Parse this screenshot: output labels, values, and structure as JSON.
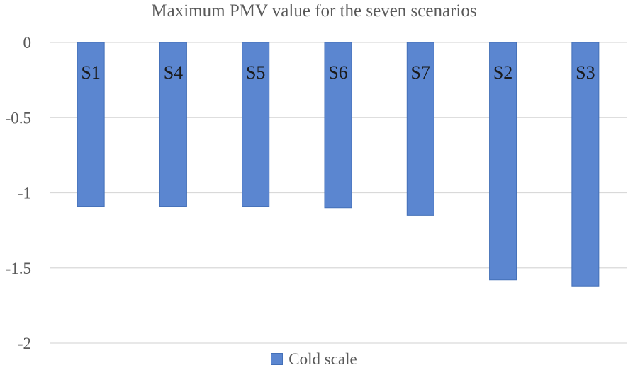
{
  "chart_data": {
    "type": "bar",
    "title": "Maximum PMV value for the seven scenarios",
    "categories": [
      "S1",
      "S4",
      "S5",
      "S6",
      "S7",
      "S2",
      "S3"
    ],
    "series": [
      {
        "name": "Cold scale",
        "values": [
          -1.09,
          -1.09,
          -1.09,
          -1.1,
          -1.15,
          -1.58,
          -1.62
        ]
      }
    ],
    "ylim": [
      -2,
      0
    ],
    "yticks": [
      0,
      -0.5,
      -1,
      -1.5,
      -2
    ],
    "ytick_labels": [
      "0",
      "-0.5",
      "-1",
      "-1.5",
      "-2"
    ],
    "grid": true,
    "legend": "bottom",
    "colors": {
      "bar": "#5b86d0",
      "bar_stroke": "#4470b8",
      "grid": "#d9d9d9",
      "text": "#595959"
    }
  }
}
